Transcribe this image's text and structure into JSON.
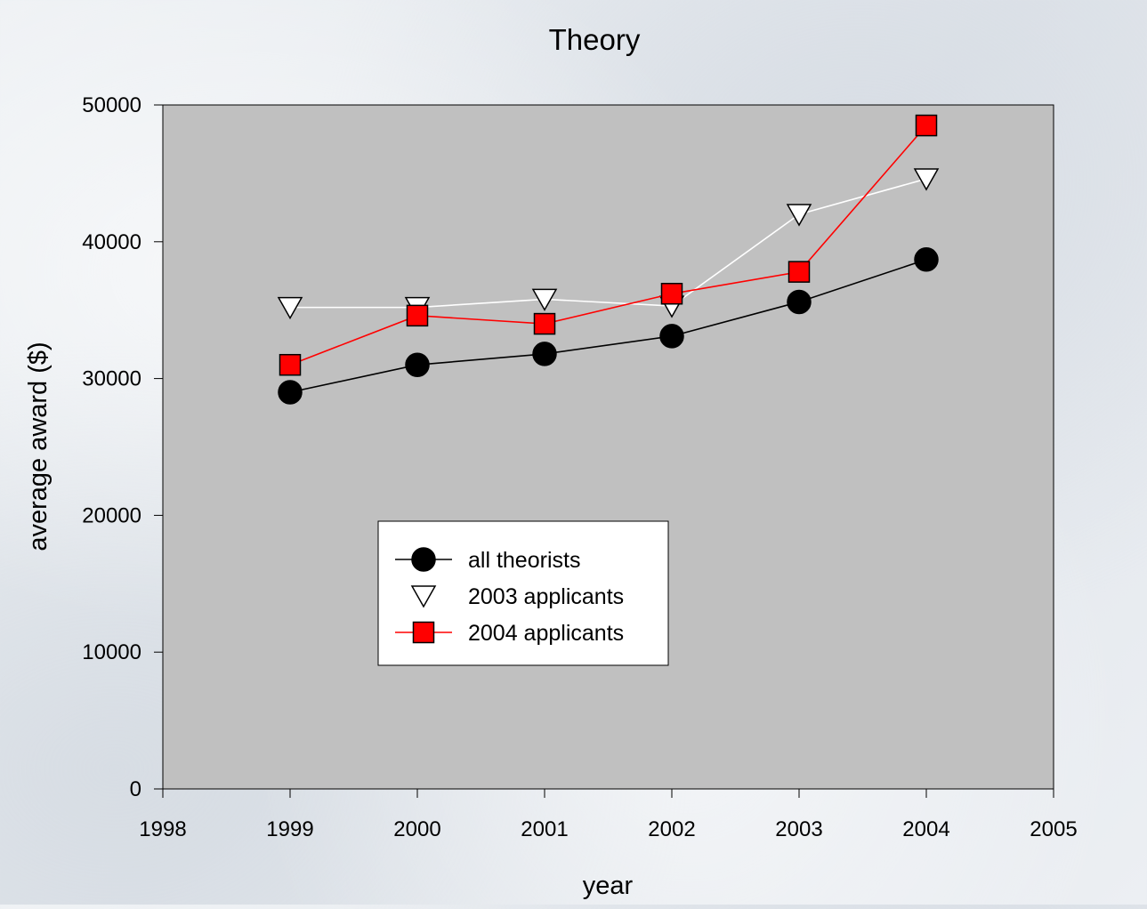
{
  "chart_data": {
    "type": "line",
    "title": "Theory",
    "xlabel": "year",
    "ylabel": "average award ($)",
    "xlim": [
      1998,
      2005
    ],
    "ylim": [
      0,
      50000
    ],
    "xticks": [
      1998,
      1999,
      2000,
      2001,
      2002,
      2003,
      2004,
      2005
    ],
    "yticks": [
      0,
      10000,
      20000,
      30000,
      40000,
      50000
    ],
    "x": [
      1999,
      2000,
      2001,
      2002,
      2003,
      2004
    ],
    "grid": false,
    "legend_position": "lower-center-left",
    "plot_background": "#c0c0c0",
    "series": [
      {
        "name": "all theorists",
        "values": [
          29000,
          31000,
          31800,
          33100,
          35600,
          38700
        ],
        "marker": "circle",
        "line_color": "#000000",
        "marker_fill": "#000000",
        "marker_stroke": "#000000"
      },
      {
        "name": "2003 applicants",
        "values": [
          35200,
          35200,
          35800,
          35300,
          42000,
          44600
        ],
        "marker": "triangle-down",
        "line_color": "#ffffff",
        "marker_fill": "#ffffff",
        "marker_stroke": "#000000"
      },
      {
        "name": "2004 applicants",
        "values": [
          31000,
          34600,
          34000,
          36200,
          37800,
          48500
        ],
        "marker": "square",
        "line_color": "#ff0000",
        "marker_fill": "#ff0000",
        "marker_stroke": "#000000"
      }
    ]
  }
}
